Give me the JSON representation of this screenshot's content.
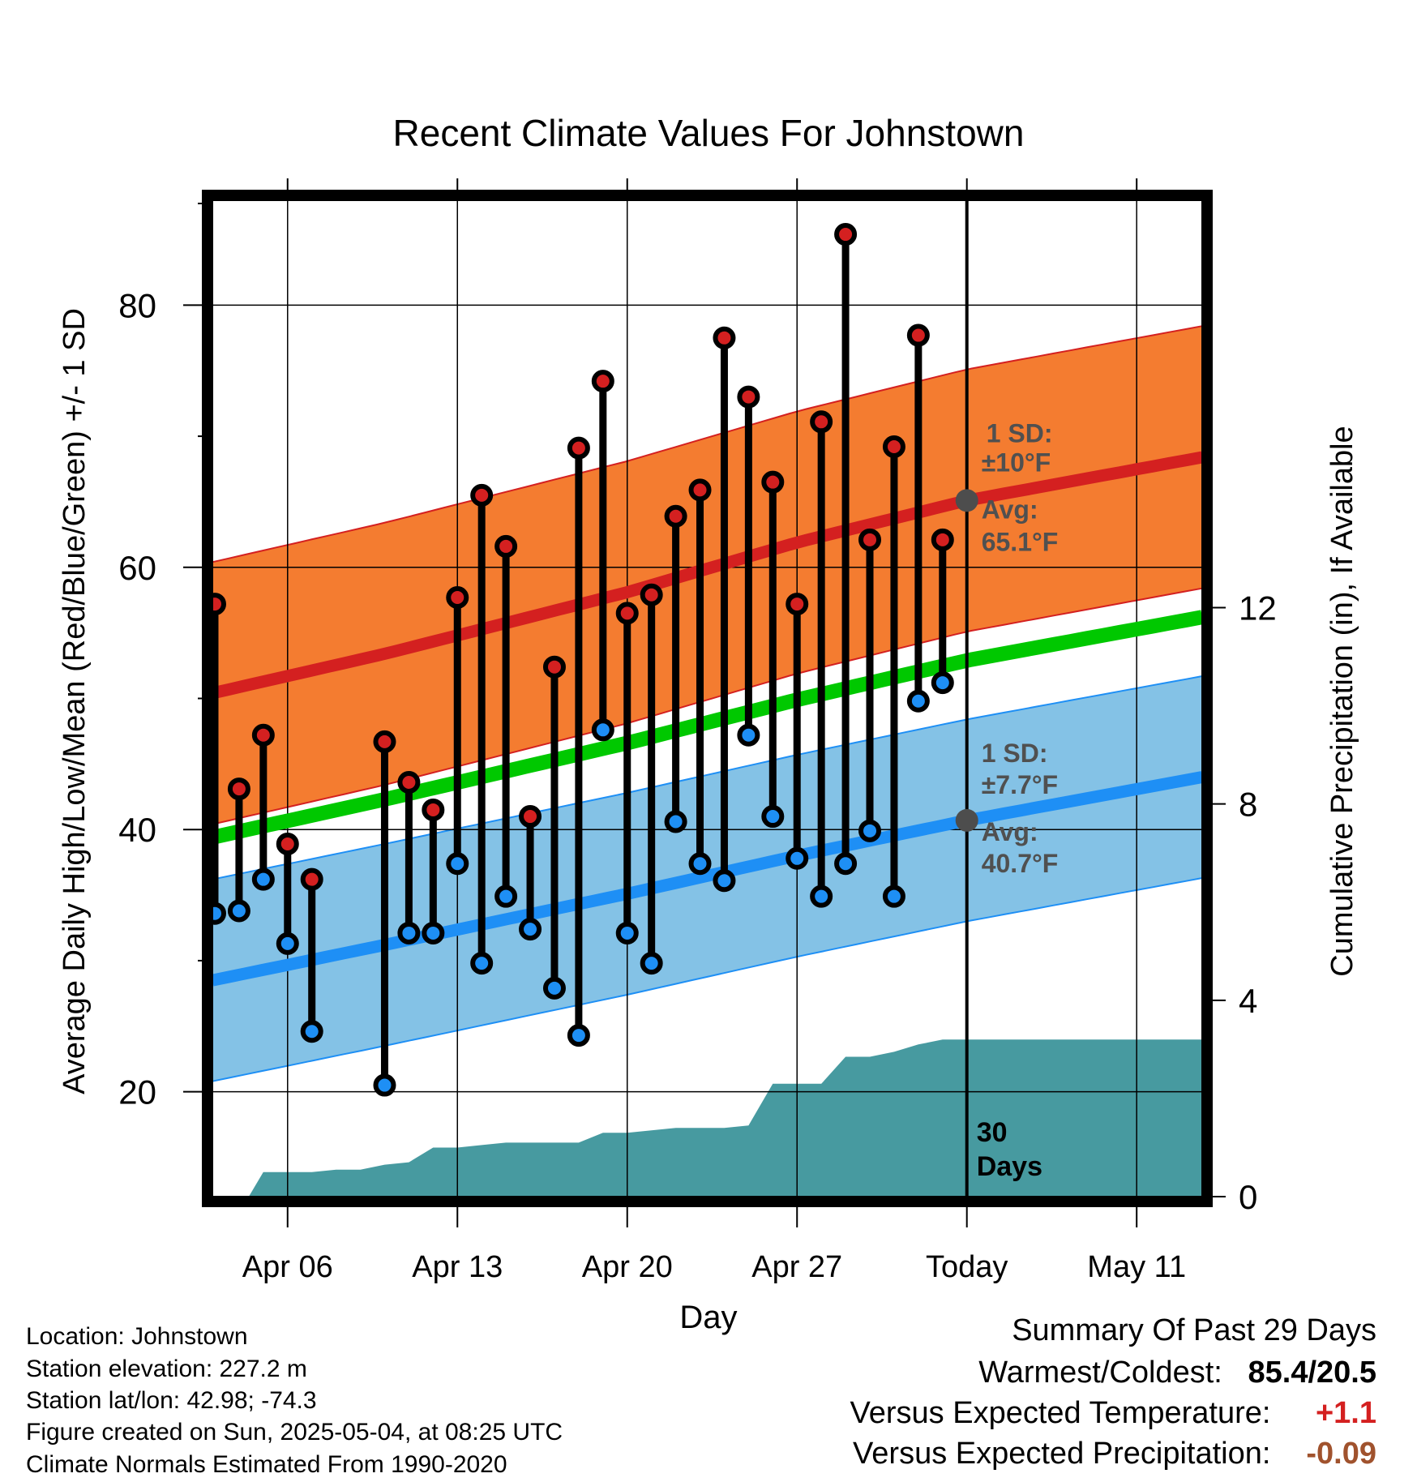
{
  "title": "Recent Climate Values For Johnstown",
  "chart_data": {
    "type": "scatter",
    "title": "Recent Climate Values For Johnstown",
    "xlabel": "Day",
    "ylabel": "Average Daily High/Low/Mean (Red/Blue/Green) +/- 1 SD",
    "y2label": "Cumulative Precipitation (in), If Available",
    "x_ticks": [
      "Apr 06",
      "Apr 13",
      "Apr 20",
      "Apr 27",
      "Today",
      "May 11"
    ],
    "x_tick_days": [
      6,
      13,
      20,
      27,
      34,
      41
    ],
    "x_range": [
      2.9,
      43.7
    ],
    "ylim": [
      12,
      88
    ],
    "y_ticks": [
      20,
      40,
      60,
      80
    ],
    "y2lim": [
      0,
      20.3
    ],
    "y2_ticks": [
      0,
      4,
      8,
      12
    ],
    "today_day": 34,
    "days": [
      3,
      4,
      5,
      6,
      7,
      8,
      10,
      11,
      12,
      13,
      14,
      15,
      16,
      17,
      18,
      19,
      20,
      21,
      22,
      23,
      24,
      25,
      26,
      27,
      28,
      29,
      30,
      31,
      32,
      33
    ],
    "daily_high": [
      57.2,
      43.1,
      47.2,
      38.9,
      36.2,
      null,
      46.7,
      43.6,
      41.5,
      57.7,
      65.5,
      61.6,
      41.0,
      52.4,
      69.1,
      74.2,
      56.5,
      57.9,
      63.9,
      65.9,
      77.5,
      73.0,
      66.5,
      57.2,
      71.1,
      85.4,
      62.1,
      69.2,
      77.7,
      62.1
    ],
    "daily_low": [
      33.6,
      33.8,
      36.2,
      31.3,
      24.6,
      null,
      20.5,
      32.1,
      32.1,
      37.4,
      29.8,
      34.9,
      32.4,
      27.9,
      24.3,
      47.6,
      32.1,
      29.8,
      40.6,
      37.4,
      36.1,
      47.2,
      41.0,
      37.8,
      34.9,
      37.4,
      39.9,
      34.9,
      49.8,
      51.2
    ],
    "normal_high": {
      "x": [
        2.9,
        10,
        20,
        27,
        34,
        43.7
      ],
      "values": [
        50.4,
        53.4,
        58.1,
        61.9,
        65.1,
        68.4
      ]
    },
    "normal_high_sd": 10,
    "normal_low": {
      "x": [
        2.9,
        10,
        20,
        27,
        34,
        43.7
      ],
      "values": [
        28.5,
        31.2,
        35.1,
        38.0,
        40.7,
        44.0
      ]
    },
    "normal_low_sd": 7.7,
    "normal_mean": {
      "x": [
        2.9,
        10,
        20,
        27,
        34,
        43.7
      ],
      "values": [
        39.4,
        42.3,
        46.6,
        49.9,
        52.9,
        56.2
      ]
    },
    "precip": {
      "x": [
        2.9,
        4.4,
        5.0,
        7.0,
        8.0,
        9.0,
        10.0,
        11.0,
        12.0,
        13.0,
        14.0,
        15.0,
        16.0,
        17.0,
        18.0,
        19.0,
        20.0,
        21.0,
        22.0,
        23.0,
        24.0,
        25.0,
        26.0,
        27.0,
        28.0,
        29.0,
        30.0,
        31.0,
        32.0,
        33.0,
        34.0,
        43.7
      ],
      "values": [
        0,
        0,
        0.5,
        0.5,
        0.55,
        0.55,
        0.65,
        0.7,
        1.0,
        1.0,
        1.05,
        1.1,
        1.1,
        1.1,
        1.1,
        1.3,
        1.3,
        1.35,
        1.4,
        1.4,
        1.4,
        1.45,
        2.3,
        2.3,
        2.3,
        2.85,
        2.85,
        2.95,
        3.1,
        3.2,
        3.2,
        3.2
      ]
    },
    "annotations": {
      "high_sd_label": "1 SD:",
      "high_sd_value": "±10°F",
      "high_avg_label": "Avg:",
      "high_avg_value": "65.1°F",
      "low_sd_label": "1 SD:",
      "low_sd_value": "±7.7°F",
      "low_avg_label": "Avg:",
      "low_avg_value": "40.7°F",
      "high_avg": 65.1,
      "low_avg": 40.7,
      "days_number": "30",
      "days_word": "Days"
    },
    "colors": {
      "high": "#d42020",
      "low": "#1e8ff5",
      "mean": "#00c800",
      "high_band": "#f47c30",
      "low_band": "#84c2e6",
      "precip": "#479aa0",
      "marker_outline": "#000000",
      "annotation": "#505050"
    }
  },
  "info": {
    "location": "Location: Johnstown",
    "elevation": "Station elevation: 227.2 m",
    "latlon": "Station lat/lon: 42.98; -74.3",
    "created": "Figure created on Sun, 2025-05-04, at 08:25 UTC",
    "normals": "Climate Normals Estimated From 1990-2020"
  },
  "summary": {
    "heading": "Summary Of Past 29 Days",
    "warm_cold_label": "Warmest/Coldest:",
    "warm_cold_value": "85.4/20.5",
    "temp_label": "Versus Expected Temperature:",
    "temp_value": "+1.1",
    "temp_color": "#d42020",
    "precip_label": "Versus Expected Precipitation:",
    "precip_value": "-0.09",
    "precip_color": "#a0522d"
  }
}
